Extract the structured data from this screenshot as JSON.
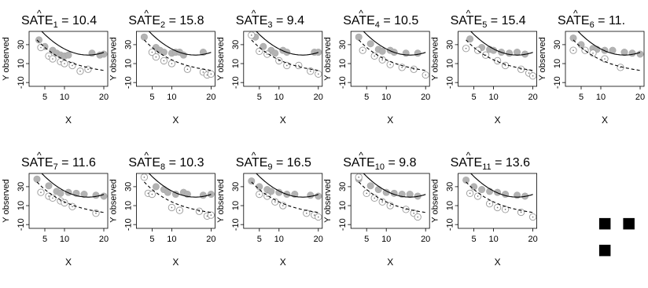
{
  "ellipsis_label": "■ ■ ■",
  "chart_data": {
    "type": "scatter",
    "shared": {
      "xlabel": "X",
      "ylabel": "Y observed",
      "xticks": [
        5,
        10,
        20
      ],
      "yticks": [
        -10,
        10,
        30
      ],
      "xlim": [
        1,
        21
      ],
      "ylim": [
        -14,
        44
      ],
      "treated_color": "#b3b3b3",
      "control_color": "#9a9a9a",
      "curve_color": "#000000"
    },
    "panels": [
      {
        "title_prefix": "SATE",
        "sub": "1",
        "value": "10.4",
        "treated": [
          [
            3.5,
            35
          ],
          [
            5,
            28
          ],
          [
            7,
            24
          ],
          [
            8,
            21
          ],
          [
            9,
            19
          ],
          [
            10,
            18
          ],
          [
            11,
            19
          ],
          [
            17,
            21
          ],
          [
            19,
            19
          ],
          [
            20,
            20
          ]
        ],
        "control": [
          [
            4,
            27
          ],
          [
            6,
            18
          ],
          [
            7,
            15
          ],
          [
            9,
            12
          ],
          [
            10,
            10
          ],
          [
            12,
            8
          ],
          [
            14,
            2
          ],
          [
            16,
            4
          ]
        ]
      },
      {
        "title_prefix": "SATE",
        "sub": "2",
        "value": "15.8",
        "treated": [
          [
            3,
            38
          ],
          [
            6,
            27
          ],
          [
            7,
            24
          ],
          [
            8,
            22
          ],
          [
            10,
            21
          ],
          [
            11,
            22
          ],
          [
            12,
            22
          ],
          [
            13,
            19
          ],
          [
            18,
            22
          ]
        ],
        "control": [
          [
            5,
            22
          ],
          [
            6,
            17
          ],
          [
            8,
            13
          ],
          [
            10,
            10
          ],
          [
            14,
            4
          ],
          [
            18,
            1
          ],
          [
            19,
            -2
          ],
          [
            20,
            -1
          ]
        ]
      },
      {
        "title_prefix": "SATE",
        "sub": "3",
        "value": "9.4",
        "treated": [
          [
            4,
            38
          ],
          [
            6,
            28
          ],
          [
            8,
            24
          ],
          [
            9,
            21
          ],
          [
            11,
            24
          ],
          [
            12,
            22
          ],
          [
            19,
            22
          ],
          [
            20,
            22
          ]
        ],
        "control": [
          [
            3,
            40
          ],
          [
            5,
            23
          ],
          [
            7,
            20
          ],
          [
            10,
            13
          ],
          [
            12,
            8
          ],
          [
            15,
            8
          ],
          [
            18,
            2
          ],
          [
            20,
            -1
          ]
        ]
      },
      {
        "title_prefix": "SATE",
        "sub": "4",
        "value": "10.5",
        "treated": [
          [
            3,
            38
          ],
          [
            6,
            31
          ],
          [
            8,
            25
          ],
          [
            9,
            23
          ],
          [
            11,
            24
          ],
          [
            12,
            22
          ],
          [
            15,
            21
          ],
          [
            18,
            21
          ]
        ],
        "control": [
          [
            4,
            24
          ],
          [
            7,
            18
          ],
          [
            9,
            14
          ],
          [
            11,
            9
          ],
          [
            14,
            6
          ],
          [
            17,
            4
          ],
          [
            20,
            -2
          ]
        ]
      },
      {
        "title_prefix": "SATE",
        "sub": "5",
        "value": "15.4",
        "treated": [
          [
            4,
            36
          ],
          [
            7,
            27
          ],
          [
            9,
            25
          ],
          [
            10,
            24
          ],
          [
            12,
            22
          ],
          [
            14,
            21
          ],
          [
            16,
            22
          ],
          [
            18,
            20
          ]
        ],
        "control": [
          [
            3,
            26
          ],
          [
            6,
            24
          ],
          [
            8,
            19
          ],
          [
            11,
            13
          ],
          [
            13,
            8
          ],
          [
            17,
            4
          ],
          [
            19,
            0
          ],
          [
            20,
            -3
          ]
        ]
      },
      {
        "title_prefix": "SATE",
        "sub": "6",
        "value": "11.",
        "treated": [
          [
            3,
            37
          ],
          [
            5,
            30
          ],
          [
            8,
            26
          ],
          [
            9,
            25
          ],
          [
            11,
            24
          ],
          [
            13,
            24
          ],
          [
            16,
            22
          ],
          [
            18,
            21
          ],
          [
            20,
            20
          ]
        ],
        "control": [
          [
            3,
            24
          ],
          [
            6,
            24
          ],
          [
            8,
            21
          ],
          [
            11,
            15
          ],
          [
            15,
            6
          ]
        ]
      },
      {
        "title_prefix": "SATE",
        "sub": "7",
        "value": "11.6",
        "treated": [
          [
            3,
            38
          ],
          [
            6,
            31
          ],
          [
            8,
            25
          ],
          [
            9,
            23
          ],
          [
            11,
            24
          ],
          [
            13,
            23
          ],
          [
            15,
            22
          ],
          [
            18,
            21
          ],
          [
            20,
            20
          ]
        ],
        "control": [
          [
            4,
            24
          ],
          [
            6,
            20
          ],
          [
            7,
            18
          ],
          [
            9,
            15
          ],
          [
            10,
            13
          ],
          [
            12,
            9
          ],
          [
            18,
            2
          ]
        ]
      },
      {
        "title_prefix": "SATE",
        "sub": "8",
        "value": "10.3",
        "treated": [
          [
            6,
            30
          ],
          [
            8,
            27
          ],
          [
            9,
            24
          ],
          [
            11,
            22
          ],
          [
            13,
            24
          ],
          [
            14,
            22
          ],
          [
            18,
            21
          ],
          [
            20,
            22
          ]
        ],
        "control": [
          [
            3,
            40
          ],
          [
            4,
            23
          ],
          [
            5,
            22
          ],
          [
            10,
            8
          ],
          [
            12,
            5
          ],
          [
            17,
            4
          ],
          [
            19,
            -1
          ],
          [
            20,
            0
          ]
        ]
      },
      {
        "title_prefix": "SATE",
        "sub": "9",
        "value": "16.5",
        "treated": [
          [
            3,
            36
          ],
          [
            5,
            30
          ],
          [
            7,
            27
          ],
          [
            8,
            25
          ],
          [
            10,
            24
          ],
          [
            12,
            22
          ],
          [
            14,
            22
          ],
          [
            18,
            21
          ],
          [
            20,
            20
          ]
        ],
        "control": [
          [
            5,
            22
          ],
          [
            7,
            20
          ],
          [
            9,
            14
          ],
          [
            11,
            10
          ],
          [
            17,
            2
          ],
          [
            19,
            0
          ],
          [
            20,
            -2
          ]
        ]
      },
      {
        "title_prefix": "SATE",
        "sub": "10",
        "value": "9.8",
        "treated": [
          [
            3,
            38
          ],
          [
            6,
            31
          ],
          [
            8,
            27
          ],
          [
            10,
            24
          ],
          [
            12,
            23
          ],
          [
            14,
            22
          ],
          [
            16,
            22
          ],
          [
            18,
            20
          ]
        ],
        "control": [
          [
            3,
            40
          ],
          [
            5,
            23
          ],
          [
            7,
            18
          ],
          [
            9,
            14
          ],
          [
            11,
            10
          ],
          [
            15,
            6
          ],
          [
            17,
            2
          ],
          [
            18,
            -2
          ]
        ]
      },
      {
        "title_prefix": "SATE",
        "sub": "11",
        "value": "13.6",
        "treated": [
          [
            3,
            37
          ],
          [
            5,
            30
          ],
          [
            7,
            27
          ],
          [
            9,
            25
          ],
          [
            11,
            24
          ],
          [
            13,
            22
          ],
          [
            16,
            21
          ],
          [
            18,
            20
          ]
        ],
        "control": [
          [
            4,
            23
          ],
          [
            6,
            20
          ],
          [
            9,
            12
          ],
          [
            11,
            8
          ],
          [
            13,
            6
          ],
          [
            17,
            3
          ],
          [
            20,
            -2
          ]
        ]
      }
    ]
  }
}
